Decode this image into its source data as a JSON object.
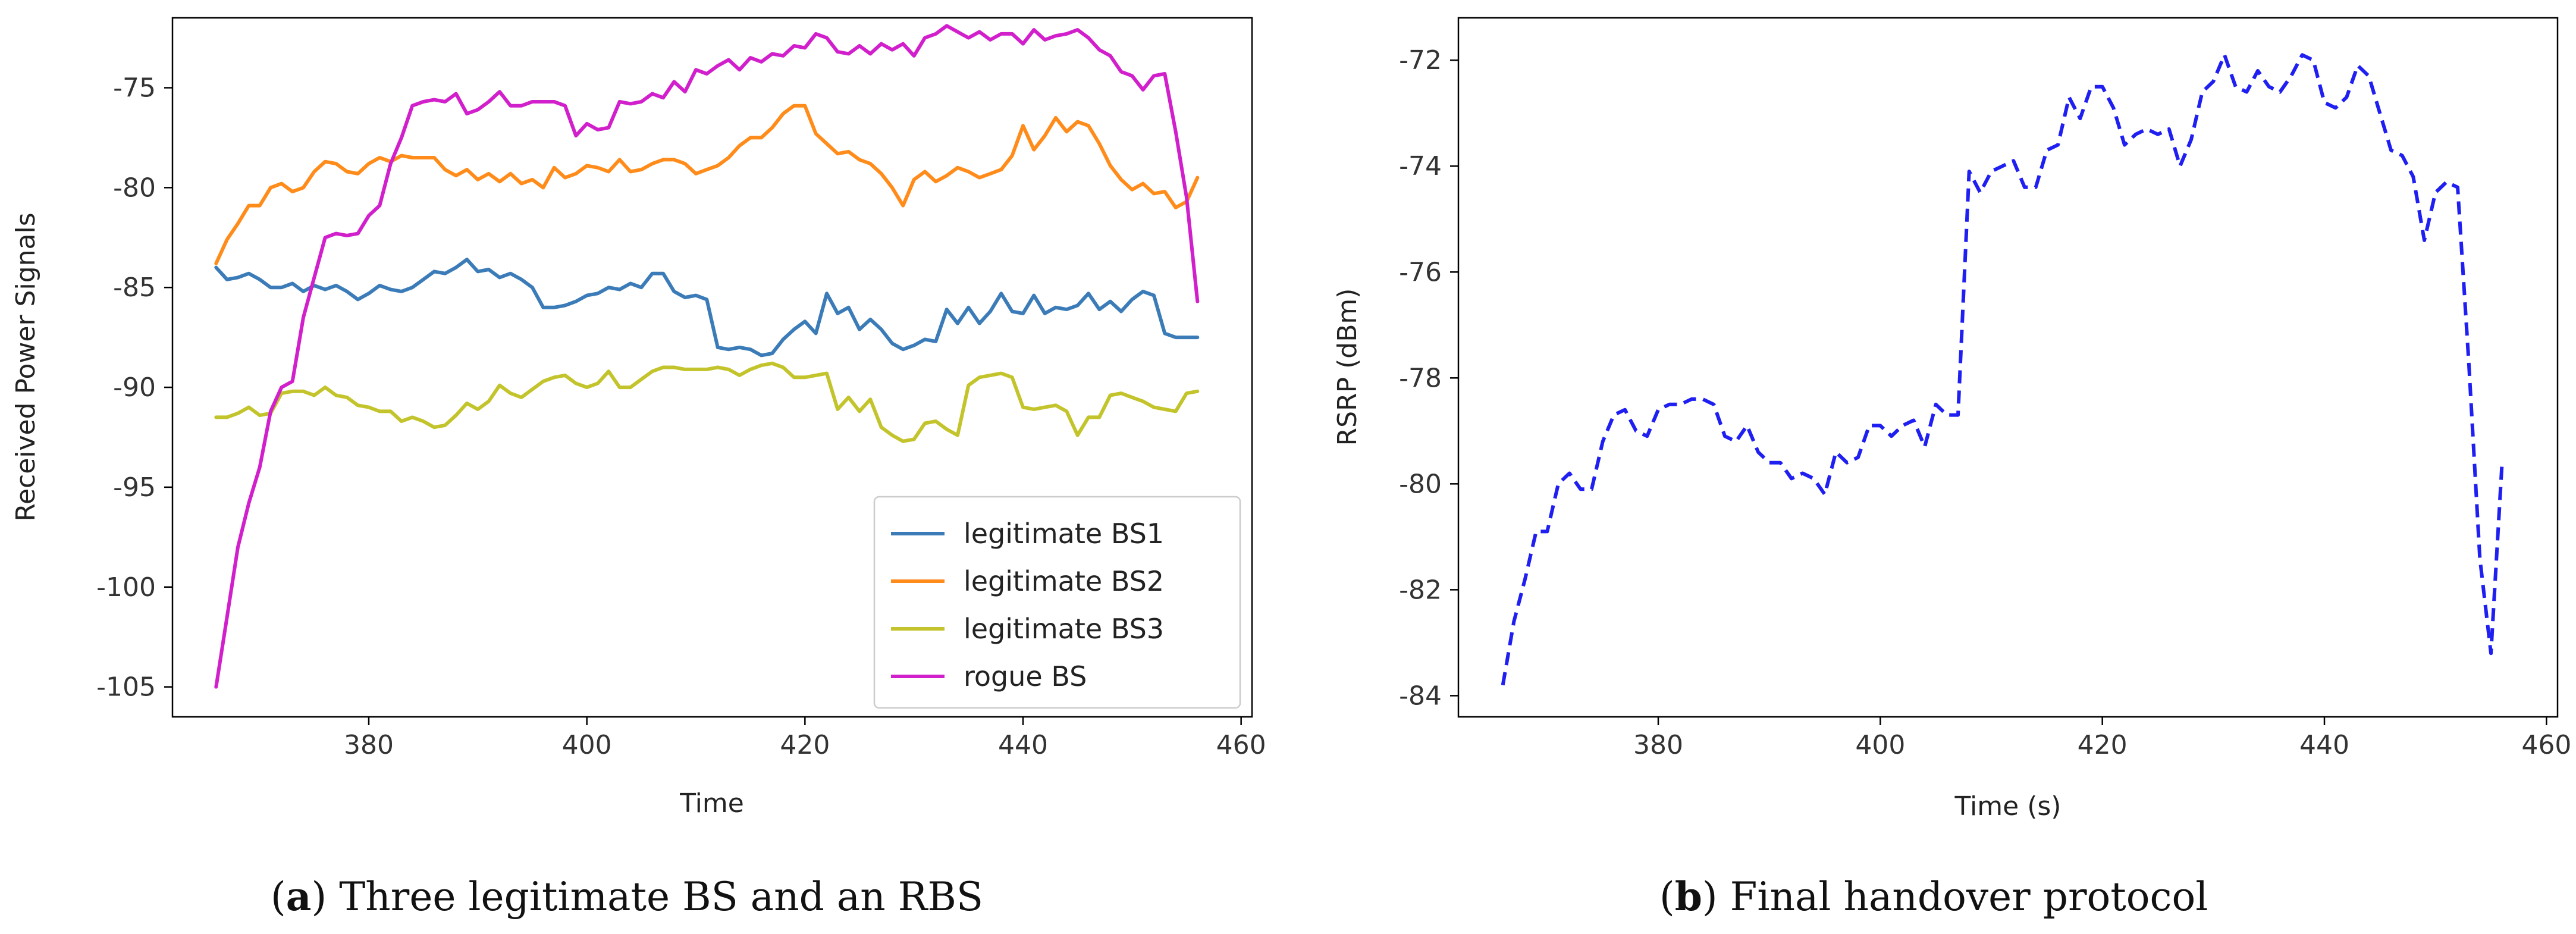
{
  "chart_data": [
    {
      "type": "line",
      "caption": {
        "prefix": "(",
        "letter": "a",
        "text": ") Three legitimate BS and an RBS"
      },
      "xlabel": "Time",
      "ylabel": "Received Power Signals",
      "xlim": [
        362,
        461
      ],
      "ylim": [
        -106.5,
        -71.5
      ],
      "xticks": [
        380,
        400,
        420,
        440,
        460
      ],
      "yticks": [
        -105,
        -100,
        -95,
        -90,
        -85,
        -80,
        -75
      ],
      "legend_position": "lower right",
      "x": [
        366,
        367,
        368,
        369,
        370,
        371,
        372,
        373,
        374,
        375,
        376,
        377,
        378,
        379,
        380,
        381,
        382,
        383,
        384,
        385,
        386,
        387,
        388,
        389,
        390,
        391,
        392,
        393,
        394,
        395,
        396,
        397,
        398,
        399,
        400,
        401,
        402,
        403,
        404,
        405,
        406,
        407,
        408,
        409,
        410,
        411,
        412,
        413,
        414,
        415,
        416,
        417,
        418,
        419,
        420,
        421,
        422,
        423,
        424,
        425,
        426,
        427,
        428,
        429,
        430,
        431,
        432,
        433,
        434,
        435,
        436,
        437,
        438,
        439,
        440,
        441,
        442,
        443,
        444,
        445,
        446,
        447,
        448,
        449,
        450,
        451,
        452,
        453,
        454,
        455,
        456
      ],
      "series": [
        {
          "name": "legitimate BS1",
          "color": "#3b7cb8",
          "values": [
            -84,
            -84.6,
            -84.5,
            -84.3,
            -84.6,
            -85,
            -85,
            -84.8,
            -85.2,
            -84.9,
            -85.1,
            -84.9,
            -85.2,
            -85.6,
            -85.3,
            -84.9,
            -85.1,
            -85.2,
            -85,
            -84.6,
            -84.2,
            -84.3,
            -84,
            -83.6,
            -84.2,
            -84.1,
            -84.5,
            -84.3,
            -84.6,
            -85,
            -86,
            -86,
            -85.9,
            -85.7,
            -85.4,
            -85.3,
            -85,
            -85.1,
            -84.8,
            -85,
            -84.3,
            -84.3,
            -85.2,
            -85.5,
            -85.4,
            -85.6,
            -88,
            -88.1,
            -88,
            -88.1,
            -88.4,
            -88.3,
            -87.6,
            -87.1,
            -86.7,
            -87.3,
            -85.3,
            -86.3,
            -86,
            -87.1,
            -86.6,
            -87.1,
            -87.8,
            -88.1,
            -87.9,
            -87.6,
            -87.7,
            -86.1,
            -86.8,
            -86,
            -86.8,
            -86.2,
            -85.3,
            -86.2,
            -86.3,
            -85.4,
            -86.3,
            -86,
            -86.1,
            -85.9,
            -85.3,
            -86.1,
            -85.7,
            -86.2,
            -85.6,
            -85.2,
            -85.4,
            -87.3,
            -87.5,
            -87.5,
            -87.5
          ]
        },
        {
          "name": "legitimate BS2",
          "color": "#ff8c1a",
          "values": [
            -83.8,
            -82.6,
            -81.8,
            -80.9,
            -80.9,
            -80,
            -79.8,
            -80.2,
            -80,
            -79.2,
            -78.7,
            -78.8,
            -79.2,
            -79.3,
            -78.8,
            -78.5,
            -78.7,
            -78.4,
            -78.5,
            -78.5,
            -78.5,
            -79.1,
            -79.4,
            -79.1,
            -79.6,
            -79.3,
            -79.7,
            -79.3,
            -79.8,
            -79.6,
            -80,
            -79,
            -79.5,
            -79.3,
            -78.9,
            -79,
            -79.2,
            -78.6,
            -79.2,
            -79.1,
            -78.8,
            -78.6,
            -78.6,
            -78.8,
            -79.3,
            -79.1,
            -78.9,
            -78.5,
            -77.9,
            -77.5,
            -77.5,
            -77,
            -76.3,
            -75.9,
            -75.9,
            -77.3,
            -77.8,
            -78.3,
            -78.2,
            -78.6,
            -78.8,
            -79.3,
            -80,
            -80.9,
            -79.6,
            -79.2,
            -79.7,
            -79.4,
            -79,
            -79.2,
            -79.5,
            -79.3,
            -79.1,
            -78.4,
            -76.9,
            -78.1,
            -77.4,
            -76.5,
            -77.2,
            -76.7,
            -76.9,
            -77.8,
            -78.9,
            -79.6,
            -80.1,
            -79.8,
            -80.3,
            -80.2,
            -81,
            -80.7,
            -79.5
          ]
        },
        {
          "name": "legitimate BS3",
          "color": "#c3c42c",
          "values": [
            -91.5,
            -91.5,
            -91.3,
            -91,
            -91.4,
            -91.3,
            -90.3,
            -90.2,
            -90.2,
            -90.4,
            -90,
            -90.4,
            -90.5,
            -90.9,
            -91,
            -91.2,
            -91.2,
            -91.7,
            -91.5,
            -91.7,
            -92,
            -91.9,
            -91.4,
            -90.8,
            -91.1,
            -90.7,
            -89.9,
            -90.3,
            -90.5,
            -90.1,
            -89.7,
            -89.5,
            -89.4,
            -89.8,
            -90,
            -89.8,
            -89.2,
            -90,
            -90,
            -89.6,
            -89.2,
            -89,
            -89,
            -89.1,
            -89.1,
            -89.1,
            -89,
            -89.1,
            -89.4,
            -89.1,
            -88.9,
            -88.8,
            -89,
            -89.5,
            -89.5,
            -89.4,
            -89.3,
            -91.1,
            -90.5,
            -91.2,
            -90.6,
            -92,
            -92.4,
            -92.7,
            -92.6,
            -91.8,
            -91.7,
            -92.1,
            -92.4,
            -89.9,
            -89.5,
            -89.4,
            -89.3,
            -89.5,
            -91,
            -91.1,
            -91,
            -90.9,
            -91.2,
            -92.4,
            -91.5,
            -91.5,
            -90.4,
            -90.3,
            -90.5,
            -90.7,
            -91,
            -91.1,
            -91.2,
            -90.3,
            -90.2
          ]
        },
        {
          "name": "rogue BS",
          "color": "#d11fcc",
          "values": [
            -105,
            -101.5,
            -98,
            -95.8,
            -94,
            -91.2,
            -90,
            -89.7,
            -86.5,
            -84.5,
            -82.5,
            -82.3,
            -82.4,
            -82.3,
            -81.4,
            -80.9,
            -78.8,
            -77.5,
            -75.9,
            -75.7,
            -75.6,
            -75.7,
            -75.3,
            -76.3,
            -76.1,
            -75.7,
            -75.2,
            -75.9,
            -75.9,
            -75.7,
            -75.7,
            -75.7,
            -75.9,
            -77.4,
            -76.8,
            -77.1,
            -77,
            -75.7,
            -75.8,
            -75.7,
            -75.3,
            -75.5,
            -74.7,
            -75.2,
            -74.1,
            -74.3,
            -73.9,
            -73.6,
            -74.1,
            -73.5,
            -73.7,
            -73.3,
            -73.4,
            -72.9,
            -73,
            -72.3,
            -72.5,
            -73.2,
            -73.3,
            -72.9,
            -73.3,
            -72.8,
            -73.1,
            -72.8,
            -73.4,
            -72.5,
            -72.3,
            -71.9,
            -72.2,
            -72.5,
            -72.2,
            -72.6,
            -72.3,
            -72.3,
            -72.8,
            -72.1,
            -72.6,
            -72.4,
            -72.3,
            -72.1,
            -72.5,
            -73.1,
            -73.4,
            -74.2,
            -74.4,
            -75.1,
            -74.4,
            -74.3,
            -77.2,
            -80.5,
            -85.7
          ]
        }
      ]
    },
    {
      "type": "line",
      "caption": {
        "prefix": "(",
        "letter": "b",
        "text": ") Final handover protocol"
      },
      "xlabel": "Time (s)",
      "ylabel": "RSRP (dBm)",
      "xlim": [
        362,
        461
      ],
      "ylim": [
        -84.4,
        -71.2
      ],
      "xticks": [
        380,
        400,
        420,
        440,
        460
      ],
      "yticks": [
        -84,
        -82,
        -80,
        -78,
        -76,
        -74,
        -72
      ],
      "line_style": "dashed",
      "x": [
        366,
        367,
        368,
        369,
        370,
        371,
        372,
        373,
        374,
        375,
        376,
        377,
        378,
        379,
        380,
        381,
        382,
        383,
        384,
        385,
        386,
        387,
        388,
        389,
        390,
        391,
        392,
        393,
        394,
        395,
        396,
        397,
        398,
        399,
        400,
        401,
        402,
        403,
        404,
        405,
        406,
        407,
        408,
        409,
        410,
        411,
        412,
        413,
        414,
        415,
        416,
        417,
        418,
        419,
        420,
        421,
        422,
        423,
        424,
        425,
        426,
        427,
        428,
        429,
        430,
        431,
        432,
        433,
        434,
        435,
        436,
        437,
        438,
        439,
        440,
        441,
        442,
        443,
        444,
        445,
        446,
        447,
        448,
        449,
        450,
        451,
        452,
        453,
        454,
        455,
        456
      ],
      "series": [
        {
          "name": "RSRP",
          "color": "#1f1ff2",
          "values": [
            -83.8,
            -82.6,
            -81.8,
            -80.9,
            -80.9,
            -80,
            -79.8,
            -80.1,
            -80.1,
            -79.2,
            -78.7,
            -78.6,
            -79,
            -79.1,
            -78.6,
            -78.5,
            -78.5,
            -78.4,
            -78.4,
            -78.5,
            -79.1,
            -79.2,
            -78.9,
            -79.4,
            -79.6,
            -79.6,
            -79.9,
            -79.8,
            -79.9,
            -80.2,
            -79.4,
            -79.6,
            -79.5,
            -78.9,
            -78.9,
            -79.1,
            -78.9,
            -78.8,
            -79.3,
            -78.5,
            -78.7,
            -78.7,
            -74.1,
            -74.5,
            -74.1,
            -74,
            -73.9,
            -74.4,
            -74.4,
            -73.7,
            -73.6,
            -72.7,
            -73.1,
            -72.5,
            -72.5,
            -72.9,
            -73.6,
            -73.4,
            -73.3,
            -73.4,
            -73.3,
            -74,
            -73.5,
            -72.6,
            -72.4,
            -71.9,
            -72.5,
            -72.6,
            -72.2,
            -72.5,
            -72.6,
            -72.3,
            -71.9,
            -72,
            -72.8,
            -72.9,
            -72.7,
            -72.1,
            -72.3,
            -73,
            -73.7,
            -73.8,
            -74.2,
            -75.4,
            -74.5,
            -74.3,
            -74.4,
            -77.7,
            -81.4,
            -83.2,
            -79.6
          ]
        }
      ]
    }
  ]
}
